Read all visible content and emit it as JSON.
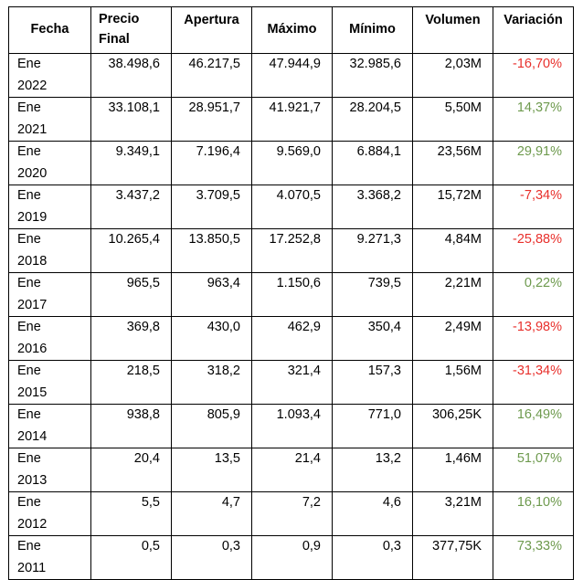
{
  "table": {
    "headers": {
      "fecha": "Fecha",
      "precio_line1": "Precio",
      "precio_line2": "Final",
      "apertura": "Apertura",
      "maximo": "Máximo",
      "minimo": "Mínimo",
      "volumen": "Volumen",
      "variacion": "Variación"
    },
    "rows": [
      {
        "mes": "Ene",
        "anio": "2022",
        "precio": "38.498,6",
        "apertura": "46.217,5",
        "maximo": "47.944,9",
        "minimo": "32.985,6",
        "volumen": "2,03M",
        "variacion": "-16,70%",
        "sign": "neg"
      },
      {
        "mes": "Ene",
        "anio": "2021",
        "precio": "33.108,1",
        "apertura": "28.951,7",
        "maximo": "41.921,7",
        "minimo": "28.204,5",
        "volumen": "5,50M",
        "variacion": "14,37%",
        "sign": "pos"
      },
      {
        "mes": "Ene",
        "anio": "2020",
        "precio": "9.349,1",
        "apertura": "7.196,4",
        "maximo": "9.569,0",
        "minimo": "6.884,1",
        "volumen": "23,56M",
        "variacion": "29,91%",
        "sign": "pos"
      },
      {
        "mes": "Ene",
        "anio": "2019",
        "precio": "3.437,2",
        "apertura": "3.709,5",
        "maximo": "4.070,5",
        "minimo": "3.368,2",
        "volumen": "15,72M",
        "variacion": "-7,34%",
        "sign": "neg"
      },
      {
        "mes": "Ene",
        "anio": "2018",
        "precio": "10.265,4",
        "apertura": "13.850,5",
        "maximo": "17.252,8",
        "minimo": "9.271,3",
        "volumen": "4,84M",
        "variacion": "-25,88%",
        "sign": "neg"
      },
      {
        "mes": "Ene",
        "anio": "2017",
        "precio": "965,5",
        "apertura": "963,4",
        "maximo": "1.150,6",
        "minimo": "739,5",
        "volumen": "2,21M",
        "variacion": "0,22%",
        "sign": "pos"
      },
      {
        "mes": "Ene",
        "anio": "2016",
        "precio": "369,8",
        "apertura": "430,0",
        "maximo": "462,9",
        "minimo": "350,4",
        "volumen": "2,49M",
        "variacion": "-13,98%",
        "sign": "neg"
      },
      {
        "mes": "Ene",
        "anio": "2015",
        "precio": "218,5",
        "apertura": "318,2",
        "maximo": "321,4",
        "minimo": "157,3",
        "volumen": "1,56M",
        "variacion": "-31,34%",
        "sign": "neg"
      },
      {
        "mes": "Ene",
        "anio": "2014",
        "precio": "938,8",
        "apertura": "805,9",
        "maximo": "1.093,4",
        "minimo": "771,0",
        "volumen": "306,25K",
        "variacion": "16,49%",
        "sign": "pos"
      },
      {
        "mes": "Ene",
        "anio": "2013",
        "precio": "20,4",
        "apertura": "13,5",
        "maximo": "21,4",
        "minimo": "13,2",
        "volumen": "1,46M",
        "variacion": "51,07%",
        "sign": "pos"
      },
      {
        "mes": "Ene",
        "anio": "2012",
        "precio": "5,5",
        "apertura": "4,7",
        "maximo": "7,2",
        "minimo": "4,6",
        "volumen": "3,21M",
        "variacion": "16,10%",
        "sign": "pos"
      },
      {
        "mes": "Ene",
        "anio": "2011",
        "precio": "0,5",
        "apertura": "0,3",
        "maximo": "0,9",
        "minimo": "0,3",
        "volumen": "377,75K",
        "variacion": "73,33%",
        "sign": "pos"
      }
    ],
    "colors": {
      "negative": "#e8302c",
      "positive": "#6e9a4e",
      "border": "#000000"
    }
  }
}
